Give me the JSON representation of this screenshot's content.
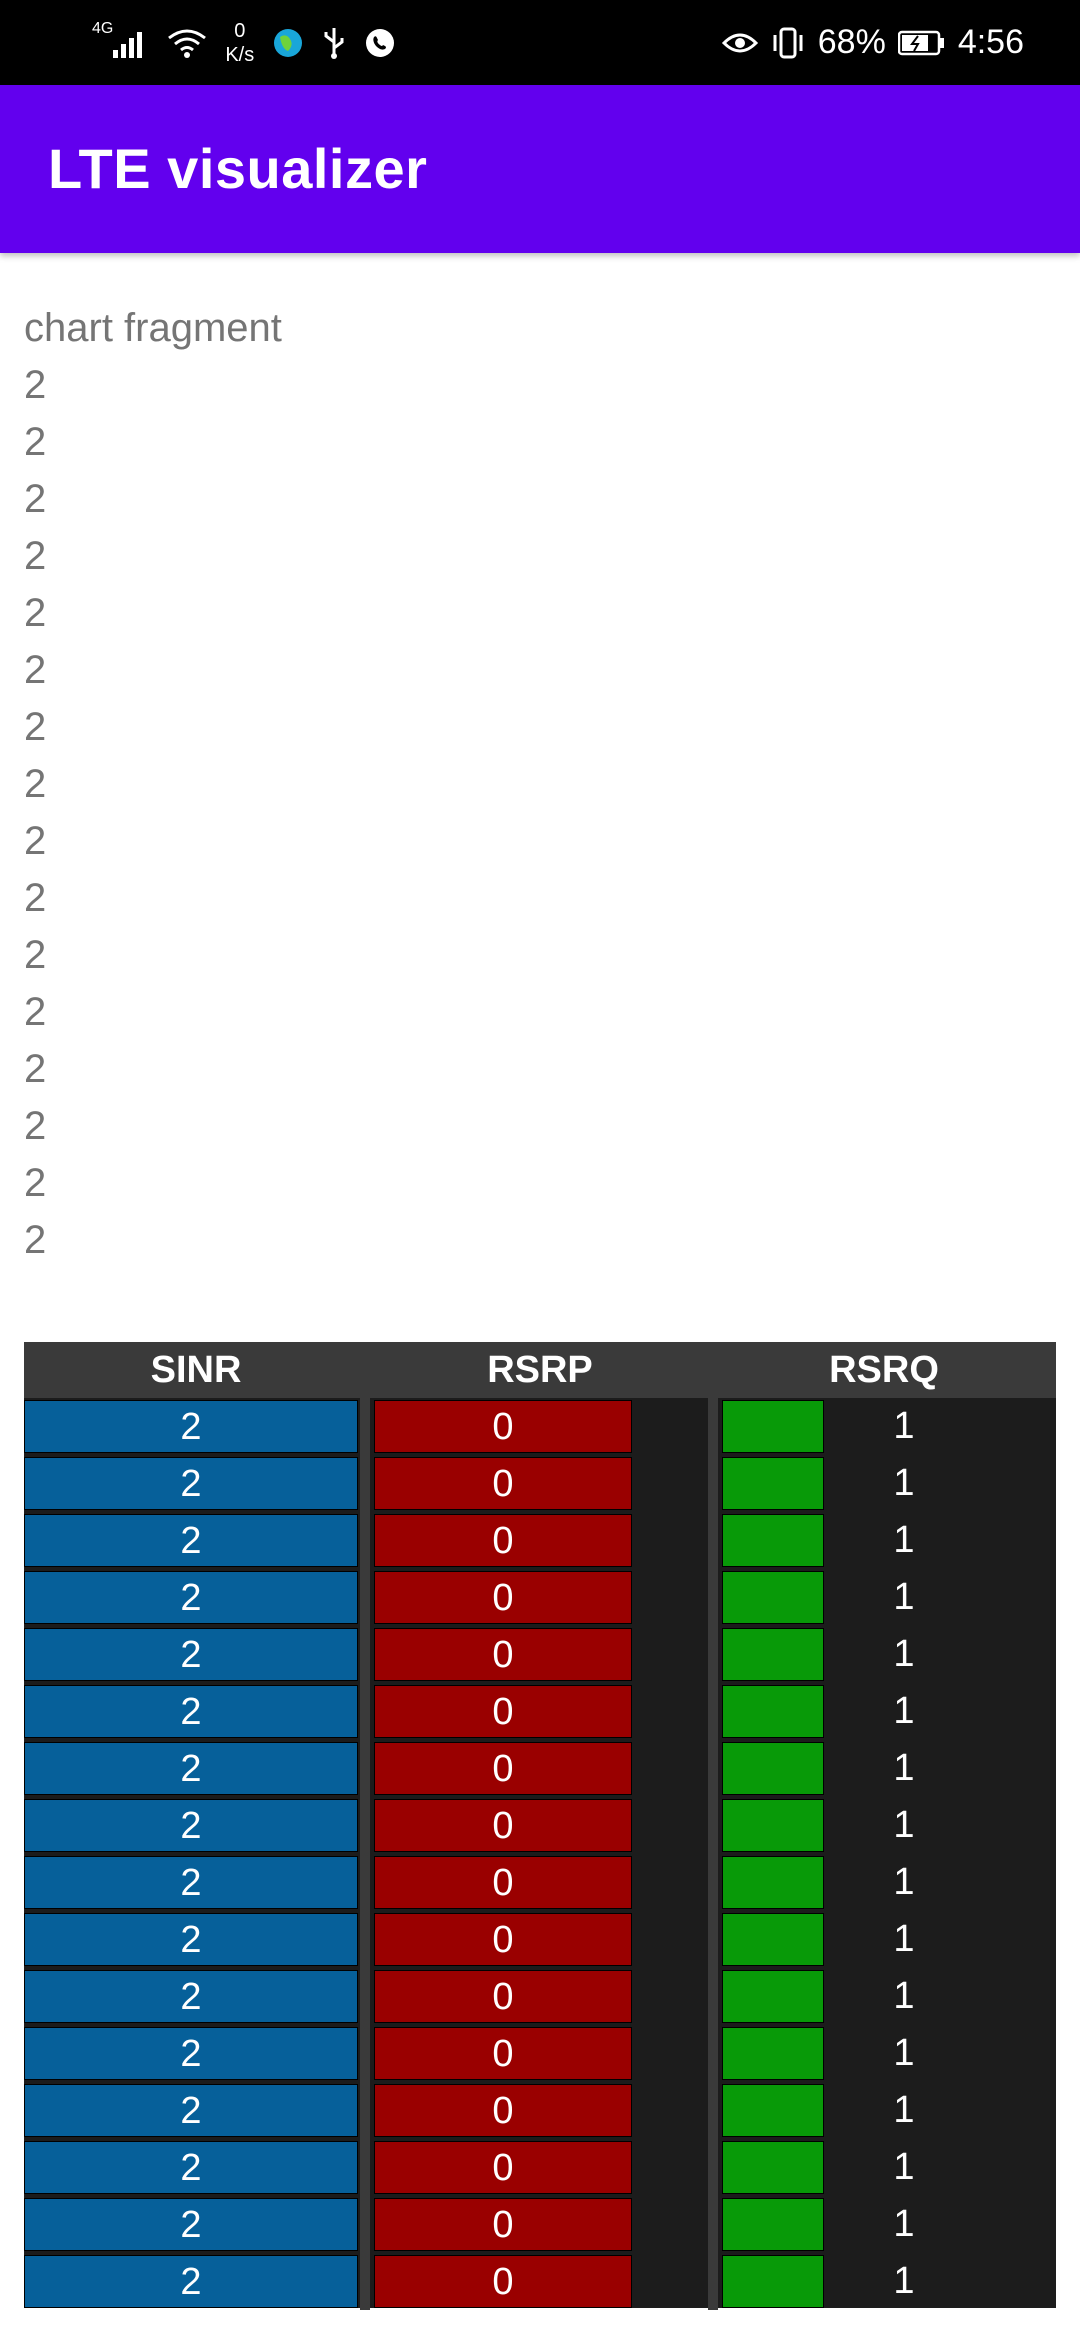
{
  "status_bar": {
    "network_type": "4G",
    "net_speed_value": "0",
    "net_speed_unit": "K/s",
    "battery_percent": "68%",
    "time": "4:56",
    "icons": [
      "signal-icon",
      "wifi-icon",
      "globe-icon",
      "usb-icon",
      "whatsapp-icon",
      "eye-icon",
      "vibrate-icon",
      "battery-icon"
    ]
  },
  "app_bar": {
    "title": "LTE visualizer"
  },
  "fragment": {
    "label": "chart fragment",
    "items": [
      "2",
      "2",
      "2",
      "2",
      "2",
      "2",
      "2",
      "2",
      "2",
      "2",
      "2",
      "2",
      "2",
      "2",
      "2",
      "2"
    ]
  },
  "table": {
    "headers": [
      "SINR",
      "RSRP",
      "RSRQ"
    ],
    "rows": [
      {
        "sinr": "2",
        "rsrp": "0",
        "rsrq": "1"
      },
      {
        "sinr": "2",
        "rsrp": "0",
        "rsrq": "1"
      },
      {
        "sinr": "2",
        "rsrp": "0",
        "rsrq": "1"
      },
      {
        "sinr": "2",
        "rsrp": "0",
        "rsrq": "1"
      },
      {
        "sinr": "2",
        "rsrp": "0",
        "rsrq": "1"
      },
      {
        "sinr": "2",
        "rsrp": "0",
        "rsrq": "1"
      },
      {
        "sinr": "2",
        "rsrp": "0",
        "rsrq": "1"
      },
      {
        "sinr": "2",
        "rsrp": "0",
        "rsrq": "1"
      },
      {
        "sinr": "2",
        "rsrp": "0",
        "rsrq": "1"
      },
      {
        "sinr": "2",
        "rsrp": "0",
        "rsrq": "1"
      },
      {
        "sinr": "2",
        "rsrp": "0",
        "rsrq": "1"
      },
      {
        "sinr": "2",
        "rsrp": "0",
        "rsrq": "1"
      },
      {
        "sinr": "2",
        "rsrp": "0",
        "rsrq": "1"
      },
      {
        "sinr": "2",
        "rsrp": "0",
        "rsrq": "1"
      },
      {
        "sinr": "2",
        "rsrp": "0",
        "rsrq": "1"
      },
      {
        "sinr": "2",
        "rsrp": "0",
        "rsrq": "1"
      }
    ],
    "colors": {
      "sinr": "#06609a",
      "rsrp": "#9a0000",
      "rsrq": "#089a08"
    }
  },
  "colors": {
    "app_bar": "#6200ee",
    "status_bar": "#000000"
  }
}
